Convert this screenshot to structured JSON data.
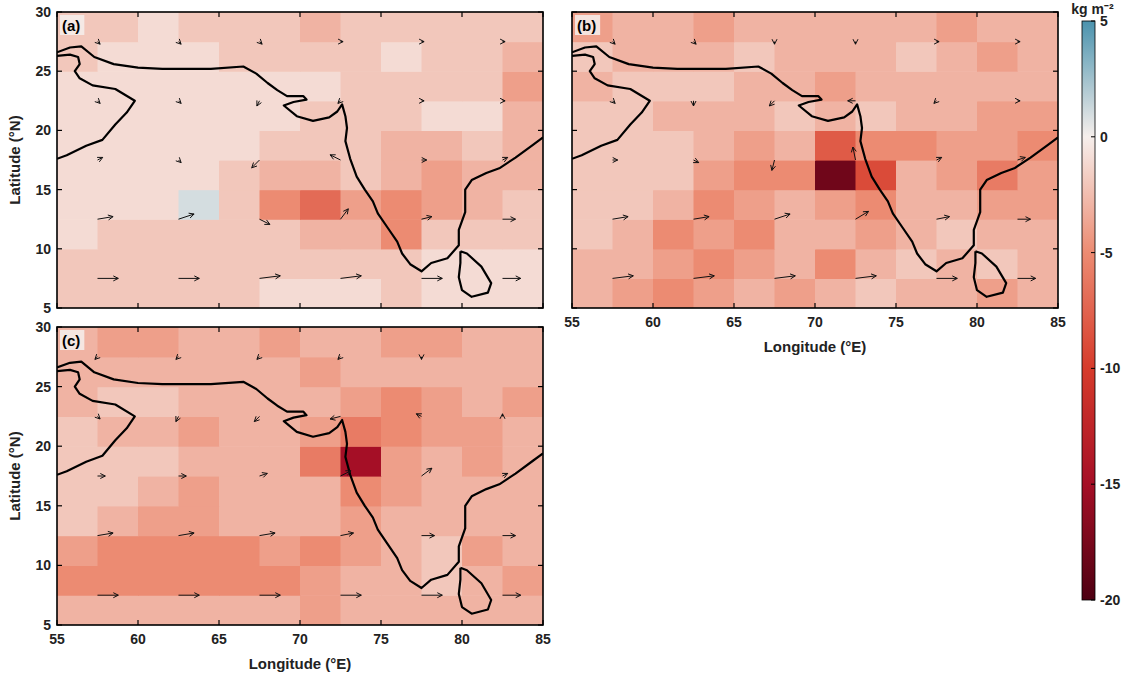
{
  "chart_data": [
    {
      "type": "heatmap",
      "title": "(a)",
      "y_label": "Latitude (°N)",
      "tick_labels": "y",
      "xlim": [
        55,
        85
      ],
      "ylim": [
        5,
        30
      ],
      "xticks": [
        55,
        60,
        65,
        70,
        75,
        80,
        85
      ],
      "yticks": [
        5,
        10,
        15,
        20,
        25,
        30
      ],
      "x_edges": [
        55,
        57.5,
        60,
        62.5,
        65,
        67.5,
        70,
        72.5,
        75,
        77.5,
        80,
        82.5,
        85
      ],
      "y_edges": [
        5,
        7.5,
        10,
        12.5,
        15,
        17.5,
        20,
        22.5,
        25,
        27.5,
        30
      ],
      "cells": [
        [
          -2,
          -2,
          -2,
          -2,
          -2,
          -1,
          -1,
          -1,
          -2,
          -1,
          -1,
          -1
        ],
        [
          -2,
          -2,
          -2,
          -2,
          -2,
          -2,
          -2,
          -2,
          -2,
          -1,
          -1,
          -1
        ],
        [
          -1,
          -2,
          -2,
          -2,
          -2,
          -2,
          -3,
          -3,
          -5,
          -2,
          -2,
          -2
        ],
        [
          -1,
          -1,
          -1,
          1,
          -2,
          -5,
          -7,
          -4,
          -5,
          -4,
          -3,
          -2
        ],
        [
          -1,
          -1,
          -1,
          -1,
          -2,
          -3,
          -3,
          -2,
          -3,
          -4,
          -3,
          -3
        ],
        [
          -1,
          -1,
          -1,
          -1,
          -1,
          -2,
          -2,
          -2,
          -3,
          -3,
          -2,
          -3
        ],
        [
          -1,
          -1,
          -1,
          -1,
          -1,
          -1,
          -2,
          -2,
          -2,
          -1,
          -1,
          -3
        ],
        [
          -1,
          -1,
          -1,
          -1,
          -1,
          -1,
          -1,
          -2,
          -2,
          -2,
          -2,
          -4
        ],
        [
          -2,
          -1,
          -1,
          -1,
          -2,
          -2,
          -2,
          -2,
          -1,
          -2,
          -2,
          -3
        ],
        [
          -2,
          -2,
          -1,
          -2,
          -2,
          -2,
          -3,
          -2,
          -2,
          -2,
          -2,
          -2
        ]
      ],
      "wind": {
        "lon": [
          57.5,
          62.5,
          67.5,
          72.5,
          77.5,
          82.5,
          57.5,
          62.5,
          67.5,
          72.5,
          77.5,
          82.5,
          57.5,
          62.5,
          67.5,
          72.5,
          77.5,
          82.5,
          57.5,
          62.5,
          67.5,
          72.5,
          77.5,
          82.5,
          57.5,
          62.5,
          67.5,
          72.5,
          77.5,
          82.5
        ],
        "lat": [
          7.5,
          7.5,
          7.5,
          7.5,
          7.5,
          7.5,
          12.5,
          12.5,
          12.5,
          12.5,
          12.5,
          12.5,
          17.5,
          17.5,
          17.5,
          17.5,
          17.5,
          17.5,
          22.5,
          22.5,
          22.5,
          22.5,
          22.5,
          22.5,
          27.5,
          27.5,
          27.5,
          27.5,
          27.5,
          27.5
        ],
        "u": [
          8,
          8,
          8,
          8,
          8,
          7,
          6,
          6,
          4,
          3,
          4,
          5,
          2,
          1,
          -3,
          -4,
          2,
          2,
          1,
          1,
          -1,
          -1,
          1,
          1,
          1,
          1,
          1,
          1,
          1,
          1
        ],
        "v": [
          0,
          0,
          1,
          1,
          0,
          0,
          1,
          2,
          -2,
          4,
          1,
          0,
          1,
          -1,
          -3,
          2,
          0,
          1,
          -1,
          -1,
          -2,
          -1,
          0,
          0,
          -1,
          -1,
          -1,
          0,
          0,
          0
        ]
      }
    },
    {
      "type": "heatmap",
      "title": "(b)",
      "x_label": "Longitude (°E)",
      "tick_labels": "x",
      "xlim": [
        55,
        85
      ],
      "ylim": [
        5,
        30
      ],
      "xticks": [
        55,
        60,
        65,
        70,
        75,
        80,
        85
      ],
      "yticks": [
        5,
        10,
        15,
        20,
        25,
        30
      ],
      "x_edges": [
        55,
        57.5,
        60,
        62.5,
        65,
        67.5,
        70,
        72.5,
        75,
        77.5,
        80,
        82.5,
        85
      ],
      "y_edges": [
        5,
        7.5,
        10,
        12.5,
        15,
        17.5,
        20,
        22.5,
        25,
        27.5,
        30
      ],
      "cells": [
        [
          -3,
          -4,
          -5,
          -4,
          -3,
          -4,
          -3,
          -2,
          -3,
          -3,
          -4,
          -3
        ],
        [
          -3,
          -3,
          -4,
          -5,
          -4,
          -3,
          -5,
          -3,
          -2,
          -3,
          -2,
          -3
        ],
        [
          -2,
          -3,
          -5,
          -4,
          -5,
          -3,
          -3,
          -4,
          -3,
          -2,
          -3,
          -3
        ],
        [
          -2,
          -2,
          -3,
          -5,
          -4,
          -3,
          -4,
          -5,
          -3,
          -3,
          -4,
          -4
        ],
        [
          -2,
          -2,
          -2,
          -4,
          -5,
          -5,
          -18,
          -9,
          -3,
          -4,
          -6,
          -4
        ],
        [
          -2,
          -2,
          -2,
          -3,
          -4,
          -3,
          -8,
          -5,
          -5,
          -4,
          -4,
          -5
        ],
        [
          -2,
          -2,
          -3,
          -3,
          -3,
          -2,
          -3,
          -2,
          -3,
          -3,
          -4,
          -4
        ],
        [
          -3,
          -2,
          -2,
          -2,
          -3,
          -3,
          -4,
          -3,
          -3,
          -3,
          -3,
          -3
        ],
        [
          -2,
          -3,
          -3,
          -3,
          -2,
          -3,
          -3,
          -3,
          -2,
          -3,
          -4,
          -3
        ],
        [
          -4,
          -3,
          -3,
          -4,
          -3,
          -3,
          -3,
          -3,
          -3,
          -4,
          -3,
          -3
        ]
      ],
      "wind": {
        "lon": [
          57.5,
          62.5,
          67.5,
          72.5,
          77.5,
          82.5,
          57.5,
          62.5,
          67.5,
          72.5,
          77.5,
          82.5,
          57.5,
          62.5,
          67.5,
          72.5,
          77.5,
          82.5,
          57.5,
          62.5,
          67.5,
          72.5,
          77.5,
          82.5,
          57.5,
          62.5,
          67.5,
          72.5,
          77.5,
          82.5
        ],
        "lat": [
          7.5,
          7.5,
          7.5,
          7.5,
          7.5,
          7.5,
          12.5,
          12.5,
          12.5,
          12.5,
          12.5,
          12.5,
          17.5,
          17.5,
          17.5,
          17.5,
          17.5,
          17.5,
          22.5,
          22.5,
          22.5,
          22.5,
          22.5,
          22.5,
          27.5,
          27.5,
          27.5,
          27.5,
          27.5,
          27.5
        ],
        "u": [
          8,
          8,
          8,
          8,
          8,
          7,
          6,
          6,
          6,
          5,
          5,
          5,
          2,
          2,
          -1,
          -1,
          2,
          3,
          1,
          0,
          -2,
          -3,
          -1,
          1,
          1,
          1,
          0,
          0,
          1,
          1
        ],
        "v": [
          1,
          1,
          1,
          1,
          0,
          0,
          1,
          1,
          2,
          3,
          1,
          0,
          0,
          -1,
          -4,
          5,
          1,
          1,
          -1,
          -2,
          -2,
          0,
          -1,
          0,
          -1,
          -1,
          -1,
          -1,
          0,
          0
        ]
      }
    },
    {
      "type": "heatmap",
      "title": "(c)",
      "x_label": "Longitude (°E)",
      "y_label": "Latitude (°N)",
      "xlim": [
        55,
        85
      ],
      "ylim": [
        5,
        30
      ],
      "xticks": [
        55,
        60,
        65,
        70,
        75,
        80,
        85
      ],
      "yticks": [
        5,
        10,
        15,
        20,
        25,
        30
      ],
      "x_edges": [
        55,
        57.5,
        60,
        62.5,
        65,
        67.5,
        70,
        72.5,
        75,
        77.5,
        80,
        82.5,
        85
      ],
      "y_edges": [
        5,
        7.5,
        10,
        12.5,
        15,
        17.5,
        20,
        22.5,
        25,
        27.5,
        30
      ],
      "cells": [
        [
          -3,
          -3,
          -3,
          -3,
          -3,
          -3,
          -4,
          -3,
          -3,
          -3,
          -3,
          -3
        ],
        [
          -5,
          -5,
          -5,
          -5,
          -5,
          -5,
          -4,
          -3,
          -3,
          -2,
          -3,
          -4
        ],
        [
          -4,
          -5,
          -5,
          -5,
          -5,
          -4,
          -5,
          -4,
          -3,
          -2,
          -4,
          -3
        ],
        [
          -2,
          -3,
          -4,
          -4,
          -3,
          -3,
          -3,
          -4,
          -3,
          -3,
          -3,
          -3
        ],
        [
          -2,
          -2,
          -3,
          -4,
          -3,
          -3,
          -3,
          -5,
          -4,
          -3,
          -3,
          -3
        ],
        [
          -2,
          -2,
          -2,
          -3,
          -3,
          -3,
          -6,
          -15,
          -4,
          -3,
          -4,
          -3
        ],
        [
          -2,
          -3,
          -3,
          -4,
          -3,
          -3,
          -4,
          -6,
          -5,
          -4,
          -4,
          -3
        ],
        [
          -3,
          -2,
          -2,
          -3,
          -3,
          -3,
          -3,
          -4,
          -5,
          -4,
          -3,
          -4
        ],
        [
          -3,
          -3,
          -3,
          -3,
          -3,
          -3,
          -4,
          -3,
          -3,
          -3,
          -3,
          -3
        ],
        [
          -3,
          -4,
          -4,
          -3,
          -3,
          -4,
          -3,
          -3,
          -4,
          -4,
          -3,
          -3
        ]
      ],
      "wind": {
        "lon": [
          57.5,
          62.5,
          67.5,
          72.5,
          77.5,
          82.5,
          57.5,
          62.5,
          67.5,
          72.5,
          77.5,
          82.5,
          57.5,
          62.5,
          67.5,
          72.5,
          77.5,
          82.5,
          57.5,
          62.5,
          67.5,
          72.5,
          77.5,
          82.5,
          57.5,
          62.5,
          67.5,
          72.5,
          77.5,
          82.5
        ],
        "lat": [
          7.5,
          7.5,
          7.5,
          7.5,
          7.5,
          7.5,
          12.5,
          12.5,
          12.5,
          12.5,
          12.5,
          12.5,
          17.5,
          17.5,
          17.5,
          17.5,
          17.5,
          17.5,
          22.5,
          22.5,
          22.5,
          22.5,
          22.5,
          22.5,
          27.5,
          27.5,
          27.5,
          27.5,
          27.5,
          27.5
        ],
        "u": [
          8,
          8,
          8,
          8,
          8,
          7,
          6,
          6,
          6,
          5,
          5,
          5,
          3,
          3,
          3,
          4,
          4,
          2,
          1,
          -1,
          -2,
          -4,
          -2,
          0,
          -1,
          -1,
          -1,
          -1,
          0,
          0
        ],
        "v": [
          0,
          0,
          0,
          0,
          0,
          0,
          1,
          1,
          1,
          1,
          0,
          0,
          0,
          0,
          1,
          2,
          3,
          1,
          -1,
          -2,
          -2,
          -1,
          1,
          1,
          -1,
          -1,
          -1,
          -1,
          -1,
          0
        ]
      }
    }
  ],
  "colorbar": {
    "label": "kg m⁻²",
    "range": [
      -20,
      5
    ],
    "ticks": [
      5,
      0,
      -5,
      -10,
      -15,
      -20
    ]
  },
  "coastline": [
    {
      "lon": [
        55,
        55.8,
        56.3,
        56.4,
        56.1,
        56.4,
        57.2,
        58.6,
        59.8,
        59.3,
        58.6,
        57.8,
        56.8,
        55.6,
        55
      ],
      "lat": [
        26.3,
        26.4,
        26.2,
        25.6,
        25.0,
        24.4,
        23.8,
        23.5,
        22.5,
        21.5,
        20.5,
        19.2,
        18.7,
        17.9,
        17.6
      ]
    },
    {
      "lon": [
        55,
        55.8,
        56.5,
        57.3,
        58.5,
        60,
        61.5,
        63,
        64.5,
        66.5,
        67.3,
        68,
        68.6,
        69.2,
        70.2,
        70.4,
        69.6,
        69,
        69.8,
        70.8,
        71.8,
        72.3,
        72.6,
        72.8,
        72.9,
        72.8,
        73.1,
        73.5,
        74,
        74.5,
        74.8,
        75.4,
        76,
        76.3,
        76.8,
        77.5,
        78.1,
        79.1,
        79.8,
        79.8,
        80.2,
        80.2,
        80.6,
        81.5,
        82.3,
        83.3,
        84.4,
        85
      ],
      "lat": [
        26.6,
        27.0,
        27.1,
        26.2,
        25.6,
        25.3,
        25.2,
        25.2,
        25.2,
        25.4,
        24.8,
        24.0,
        23.4,
        22.9,
        22.9,
        22.6,
        22.4,
        22.1,
        21.2,
        20.8,
        21.1,
        21.6,
        22.2,
        21.2,
        20.2,
        19.1,
        17.6,
        16.1,
        15.0,
        14.0,
        13.0,
        11.8,
        10.6,
        9.6,
        8.7,
        8.1,
        8.8,
        9.2,
        10.3,
        11.6,
        13.1,
        15.0,
        15.8,
        16.4,
        16.8,
        17.7,
        18.8,
        19.4
      ]
    },
    {
      "lon": [
        79.9,
        80.3,
        81.2,
        81.8,
        81.6,
        80.6,
        80.0,
        79.8,
        79.9,
        79.9
      ],
      "lat": [
        9.8,
        9.6,
        8.5,
        7.1,
        6.3,
        5.95,
        6.5,
        7.6,
        8.8,
        9.8
      ]
    }
  ]
}
